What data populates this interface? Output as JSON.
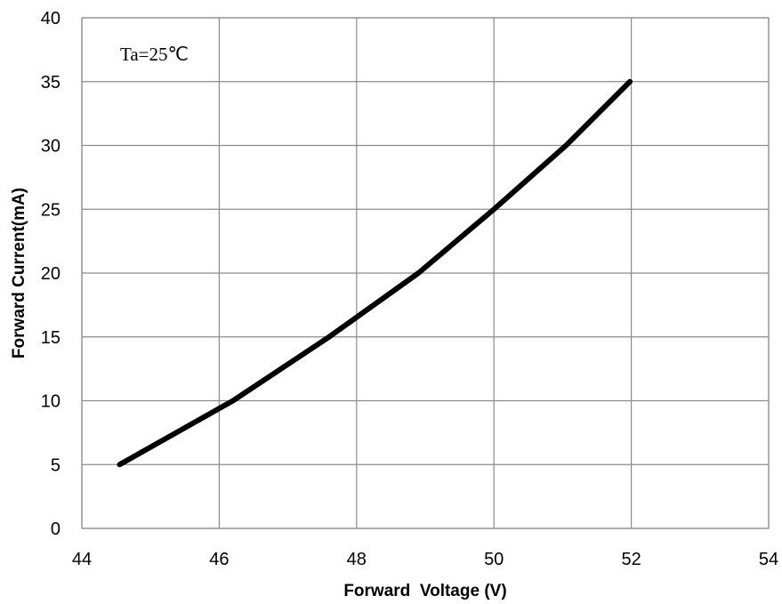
{
  "chart_data": {
    "type": "line",
    "title": "",
    "xlabel": "Forward  Voltage (V)",
    "ylabel": "Forward Current(mA)",
    "annotation": "Ta=25℃",
    "xlim": [
      44,
      54
    ],
    "ylim": [
      0,
      40
    ],
    "x_ticks": [
      44,
      46,
      48,
      50,
      52,
      54
    ],
    "y_ticks": [
      0,
      5,
      10,
      15,
      20,
      25,
      30,
      35,
      40
    ],
    "grid": true,
    "legend": "none",
    "series": [
      {
        "color": "#000000",
        "x": [
          44.55,
          46.2,
          47.6,
          48.9,
          50.0,
          51.05,
          51.98
        ],
        "y": [
          5,
          10,
          15,
          20,
          25,
          30,
          35
        ]
      }
    ]
  }
}
